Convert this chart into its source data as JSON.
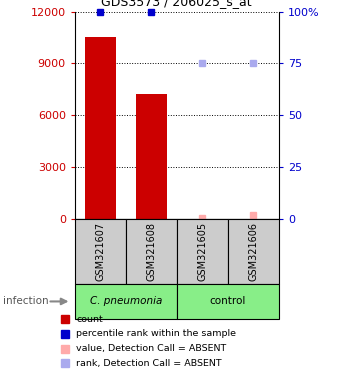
{
  "title": "GDS3573 / 206025_s_at",
  "samples": [
    "GSM321607",
    "GSM321608",
    "GSM321605",
    "GSM321606"
  ],
  "counts": [
    10500,
    7200,
    0,
    0
  ],
  "percentile_ranks": [
    100,
    100,
    null,
    null
  ],
  "rank_absent_values": [
    75,
    75
  ],
  "value_absent_values": [
    50,
    200
  ],
  "groups": [
    {
      "label": "C. pneumonia",
      "color": "#88EE88",
      "span": [
        0,
        1
      ]
    },
    {
      "label": "control",
      "color": "#88EE88",
      "span": [
        2,
        3
      ]
    }
  ],
  "ylim_left": [
    0,
    12000
  ],
  "ylim_right": [
    0,
    100
  ],
  "yticks_left": [
    0,
    3000,
    6000,
    9000,
    12000
  ],
  "yticks_right": [
    0,
    25,
    50,
    75,
    100
  ],
  "left_color": "#cc0000",
  "right_color": "#0000cc",
  "bar_color": "#cc0000",
  "percentile_color": "#0000cc",
  "absent_value_color": "#ffaaaa",
  "absent_rank_color": "#aaaaee",
  "grid_color": "#000000",
  "sample_box_color": "#cccccc",
  "infection_label": "infection",
  "legend_items": [
    {
      "color": "#cc0000",
      "label": "count"
    },
    {
      "color": "#0000cc",
      "label": "percentile rank within the sample"
    },
    {
      "color": "#ffaaaa",
      "label": "value, Detection Call = ABSENT"
    },
    {
      "color": "#aaaaee",
      "label": "rank, Detection Call = ABSENT"
    }
  ]
}
